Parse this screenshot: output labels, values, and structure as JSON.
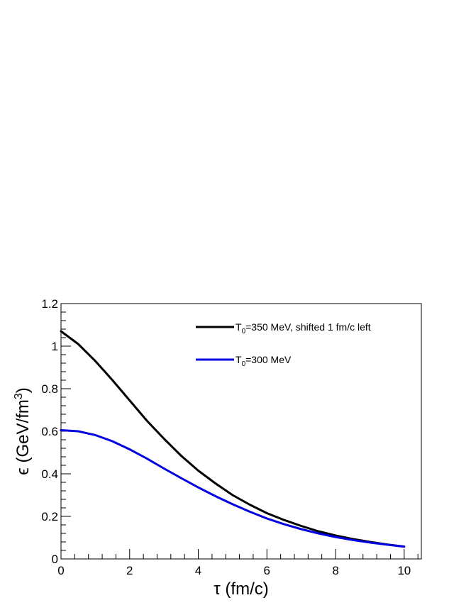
{
  "chart_data": {
    "type": "line",
    "xlabel": "τ (fm/c)",
    "ylabel": "ϵ (GeV/fm³)",
    "xlim": [
      0,
      10.5
    ],
    "ylim": [
      0,
      1.2
    ],
    "xticks": [
      0,
      2,
      4,
      6,
      8,
      10
    ],
    "yticks": [
      0,
      0.2,
      0.4,
      0.6,
      0.8,
      1,
      1.2
    ],
    "grid": false,
    "legend_position": "top-right",
    "series": [
      {
        "name": "T0=350 MeV, shifted 1 fm/c left",
        "color": "#000000",
        "x": [
          0,
          0.5,
          1,
          1.5,
          2,
          2.5,
          3,
          3.5,
          4,
          4.5,
          5,
          5.5,
          6,
          6.5,
          7,
          7.5,
          8,
          8.5,
          9,
          9.5,
          10
        ],
        "y": [
          1.07,
          1.01,
          0.93,
          0.84,
          0.745,
          0.65,
          0.565,
          0.485,
          0.415,
          0.355,
          0.3,
          0.255,
          0.215,
          0.183,
          0.155,
          0.13,
          0.11,
          0.094,
          0.08,
          0.068,
          0.058
        ]
      },
      {
        "name": "T0=300 MeV",
        "color": "#0000e0",
        "x": [
          0,
          0.5,
          1,
          1.5,
          2,
          2.5,
          3,
          3.5,
          4,
          4.5,
          5,
          5.5,
          6,
          6.5,
          7,
          7.5,
          8,
          8.5,
          9,
          9.5,
          10
        ],
        "y": [
          0.605,
          0.6,
          0.582,
          0.553,
          0.515,
          0.472,
          0.425,
          0.38,
          0.336,
          0.295,
          0.257,
          0.222,
          0.19,
          0.163,
          0.14,
          0.12,
          0.103,
          0.089,
          0.077,
          0.067,
          0.058
        ]
      }
    ]
  },
  "legend": [
    {
      "main": "T",
      "sub": "0",
      "rest": "=350 MeV, shifted 1 fm/c left"
    },
    {
      "main": "T",
      "sub": "0",
      "rest": "=300 MeV"
    }
  ],
  "axis_titles": {
    "x": "τ (fm/c)",
    "y_main": "ϵ (GeV/fm",
    "y_sup": "3",
    "y_close": ")"
  }
}
